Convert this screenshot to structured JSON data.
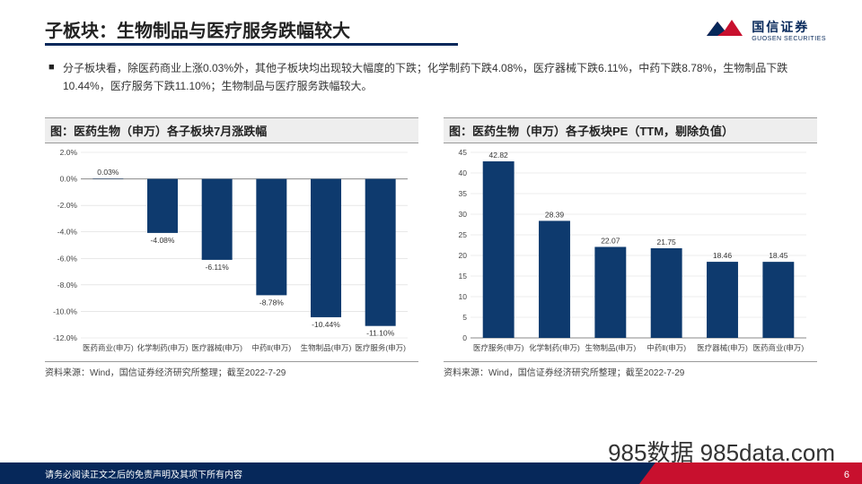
{
  "header": {
    "title": "子板块：生物制品与医疗服务跌幅较大",
    "logo_cn": "国信证券",
    "logo_en": "GUOSEN SECURITIES"
  },
  "bullet": "分子板块看，除医药商业上涨0.03%外，其他子板块均出现较大幅度的下跌；化学制药下跌4.08%，医疗器械下跌6.11%，中药下跌8.78%，生物制品下跌10.44%，医疗服务下跌11.10%；生物制品与医疗服务跌幅较大。",
  "chart_left": {
    "title": "图：医药生物（申万）各子板块7月涨跌幅",
    "type": "bar",
    "categories": [
      "医药商业(申万)",
      "化学制药(申万)",
      "医疗器械(申万)",
      "中药Ⅱ(申万)",
      "生物制品(申万)",
      "医疗服务(申万)"
    ],
    "values": [
      0.03,
      -4.08,
      -6.11,
      -8.78,
      -10.44,
      -11.1
    ],
    "labels": [
      "0.03%",
      "-4.08%",
      "-6.11%",
      "-8.78%",
      "-10.44%",
      "-11.10%"
    ],
    "y_ticks": [
      2.0,
      0.0,
      -2.0,
      -4.0,
      -6.0,
      -8.0,
      -10.0,
      -12.0
    ],
    "y_tick_labels": [
      "2.0%",
      "0.0%",
      "-2.0%",
      "-4.0%",
      "-6.0%",
      "-8.0%",
      "-10.0%",
      "-12.0%"
    ],
    "bar_color": "#0e3a6e",
    "grid_color": "#d9d9d9",
    "zero_line_color": "#888888",
    "source": "资料来源：Wind，国信证券经济研究所整理；截至2022-7-29"
  },
  "chart_right": {
    "title": "图：医药生物（申万）各子板块PE（TTM，剔除负值）",
    "type": "bar",
    "categories": [
      "医疗服务(申万)",
      "化学制药(申万)",
      "生物制品(申万)",
      "中药Ⅱ(申万)",
      "医疗器械(申万)",
      "医药商业(申万)"
    ],
    "values": [
      42.82,
      28.39,
      22.07,
      21.75,
      18.46,
      18.45
    ],
    "labels": [
      "42.82",
      "28.39",
      "22.07",
      "21.75",
      "18.46",
      "18.45"
    ],
    "y_ticks": [
      45,
      40,
      35,
      30,
      25,
      20,
      15,
      10,
      5,
      0
    ],
    "y_tick_labels": [
      "45",
      "40",
      "35",
      "30",
      "25",
      "20",
      "15",
      "10",
      "5",
      "0"
    ],
    "bar_color": "#0e3a6e",
    "grid_color": "#d9d9d9",
    "axis_color": "#888888",
    "source": "资料来源：Wind，国信证券经济研究所整理；截至2022-7-29"
  },
  "watermark": "985数据 985data.com",
  "footer": {
    "disclaimer": "请务必阅读正文之后的免责声明及其项下所有内容",
    "page": "6"
  },
  "colors": {
    "brand_blue": "#06285a",
    "brand_red": "#c8102e"
  }
}
